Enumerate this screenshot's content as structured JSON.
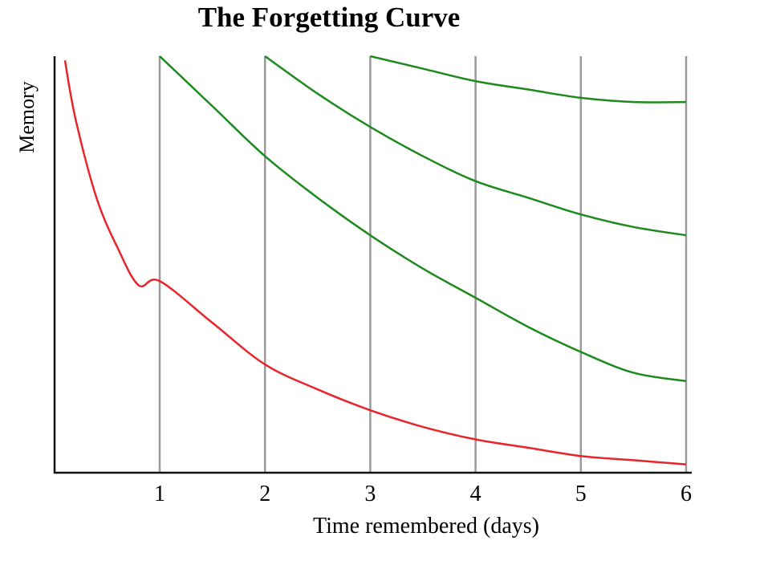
{
  "chart_data": {
    "type": "line",
    "title": "The Forgetting Curve",
    "xlabel": "Time remembered (days)",
    "ylabel": "Memory",
    "xlim": [
      0.1,
      6
    ],
    "ylim": [
      0,
      100
    ],
    "x_ticks": [
      "1",
      "2",
      "3",
      "4",
      "5",
      "6"
    ],
    "y_ticks": [],
    "grid": "vertical",
    "colors": {
      "forgetting": "#e8252a",
      "review": "#1e8a1e",
      "grid": "#9a9a9a",
      "axis": "#111111"
    },
    "series": [
      {
        "color": "#e8252a",
        "x": [
          0.1,
          0.2,
          0.4,
          0.6,
          0.8,
          1,
          1.5,
          2,
          2.5,
          3,
          3.5,
          4,
          4.5,
          5,
          5.5,
          6
        ],
        "y": [
          99,
          85,
          66,
          54,
          45,
          46,
          36,
          26,
          20,
          15,
          11,
          8,
          6,
          4,
          3,
          2
        ]
      },
      {
        "color": "#1e8a1e",
        "x": [
          1,
          1.5,
          2,
          2.5,
          3,
          3.5,
          4,
          4.5,
          5,
          5.5,
          6
        ],
        "y": [
          100,
          88,
          76,
          66,
          57,
          49,
          42,
          35,
          29,
          24,
          22
        ]
      },
      {
        "color": "#1e8a1e",
        "x": [
          2,
          2.5,
          3,
          3.5,
          4,
          4.5,
          5,
          5.5,
          6
        ],
        "y": [
          100,
          91,
          83,
          76,
          70,
          66,
          62,
          59,
          57
        ]
      },
      {
        "color": "#1e8a1e",
        "x": [
          3,
          3.5,
          4,
          4.5,
          5,
          5.5,
          6
        ],
        "y": [
          100,
          97,
          94,
          92,
          90,
          89,
          89
        ]
      }
    ]
  }
}
